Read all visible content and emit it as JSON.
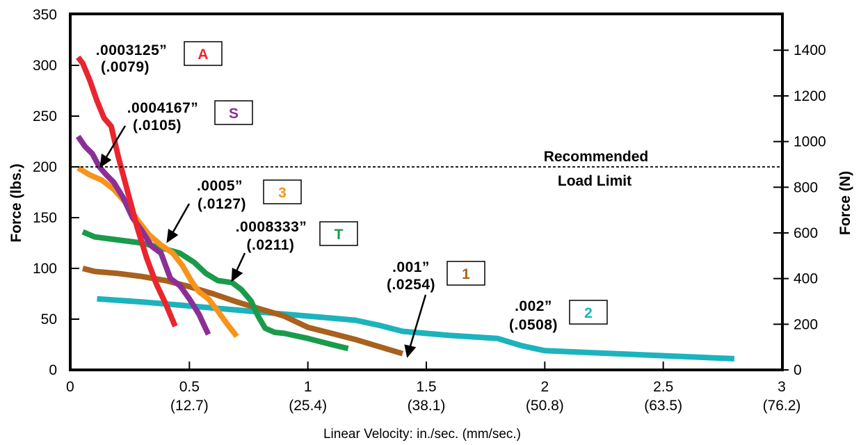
{
  "chart_data": {
    "type": "line",
    "xlabel": "Linear Velocity:  in./sec. (mm/sec.)",
    "ylabel": "Force (lbs.)",
    "ylabel_right": "Force (N)",
    "xlim": [
      0,
      3
    ],
    "ylim": [
      0,
      350
    ],
    "ylim_right": [
      0,
      1556
    ],
    "x_ticks": [
      {
        "value": 0,
        "label": "0",
        "sublabel": ""
      },
      {
        "value": 0.5,
        "label": "0.5",
        "sublabel": "(12.7)"
      },
      {
        "value": 1,
        "label": "1",
        "sublabel": "(25.4)"
      },
      {
        "value": 1.5,
        "label": "1.5",
        "sublabel": "(38.1)"
      },
      {
        "value": 2,
        "label": "2",
        "sublabel": "(50.8)"
      },
      {
        "value": 2.5,
        "label": "2.5",
        "sublabel": "(63.5)"
      },
      {
        "value": 3,
        "label": "3",
        "sublabel": "(76.2)"
      }
    ],
    "y_ticks": [
      0,
      50,
      100,
      150,
      200,
      250,
      300,
      350
    ],
    "y_ticks_right": [
      0,
      200,
      400,
      600,
      800,
      1000,
      1200,
      1400
    ],
    "grid": false,
    "reference_line": {
      "y": 200,
      "label_line1": "Recommended",
      "label_line2": "Load Limit"
    },
    "series": [
      {
        "name": "A",
        "pitch_in": ".0003125”",
        "pitch_mm": "(.0079)",
        "color": "#e8262f",
        "x": [
          0.03,
          0.05,
          0.08,
          0.11,
          0.14,
          0.17,
          0.2,
          0.24,
          0.28,
          0.32,
          0.36,
          0.4,
          0.44
        ],
        "y": [
          308,
          302,
          285,
          265,
          248,
          240,
          210,
          175,
          140,
          110,
          85,
          65,
          43
        ]
      },
      {
        "name": "S",
        "pitch_in": ".0004167”",
        "pitch_mm": "(.0105)",
        "color": "#8b2f96",
        "x": [
          0.03,
          0.06,
          0.09,
          0.12,
          0.15,
          0.18,
          0.22,
          0.26,
          0.3,
          0.34,
          0.38,
          0.42,
          0.46,
          0.5,
          0.54,
          0.58
        ],
        "y": [
          230,
          220,
          213,
          200,
          192,
          185,
          170,
          150,
          137,
          122,
          115,
          90,
          83,
          70,
          55,
          35
        ]
      },
      {
        "name": "3",
        "pitch_in": ".0005”",
        "pitch_mm": "(.0127)",
        "color": "#f7941d",
        "x": [
          0.03,
          0.08,
          0.13,
          0.18,
          0.23,
          0.28,
          0.33,
          0.38,
          0.43,
          0.47,
          0.51,
          0.54,
          0.58,
          0.62,
          0.66,
          0.7
        ],
        "y": [
          199,
          192,
          187,
          178,
          165,
          148,
          133,
          123,
          115,
          103,
          87,
          77,
          70,
          58,
          45,
          33
        ]
      },
      {
        "name": "T",
        "pitch_in": ".0008333”",
        "pitch_mm": "(.0211)",
        "color": "#1a9b4b",
        "x": [
          0.05,
          0.1,
          0.2,
          0.3,
          0.4,
          0.46,
          0.52,
          0.57,
          0.62,
          0.68,
          0.72,
          0.76,
          0.79,
          0.82,
          0.86,
          0.9,
          1.0,
          1.1,
          1.17
        ],
        "y": [
          136,
          131,
          128,
          125,
          119,
          115,
          106,
          95,
          88,
          86,
          79,
          68,
          53,
          41,
          37,
          36,
          31,
          25,
          21
        ]
      },
      {
        "name": "1",
        "pitch_in": ".001”",
        "pitch_mm": "(.0254)",
        "color": "#a8611f",
        "x": [
          0.05,
          0.1,
          0.2,
          0.3,
          0.4,
          0.5,
          0.6,
          0.7,
          0.8,
          0.9,
          1.0,
          1.1,
          1.2,
          1.3,
          1.4
        ],
        "y": [
          100,
          97,
          95,
          92,
          88,
          82,
          75,
          67,
          60,
          53,
          42,
          36,
          30,
          23,
          16
        ]
      },
      {
        "name": "2",
        "pitch_in": ".002”",
        "pitch_mm": "(.0508)",
        "color": "#1cb3bd",
        "x": [
          0.11,
          0.3,
          0.5,
          0.7,
          0.9,
          1.1,
          1.2,
          1.3,
          1.4,
          1.6,
          1.8,
          1.9,
          2.0,
          2.2,
          2.4,
          2.6,
          2.8
        ],
        "y": [
          70,
          67,
          63,
          59,
          55,
          51,
          49,
          44,
          38,
          34,
          31,
          24,
          19,
          17,
          15,
          13,
          11
        ]
      }
    ]
  }
}
